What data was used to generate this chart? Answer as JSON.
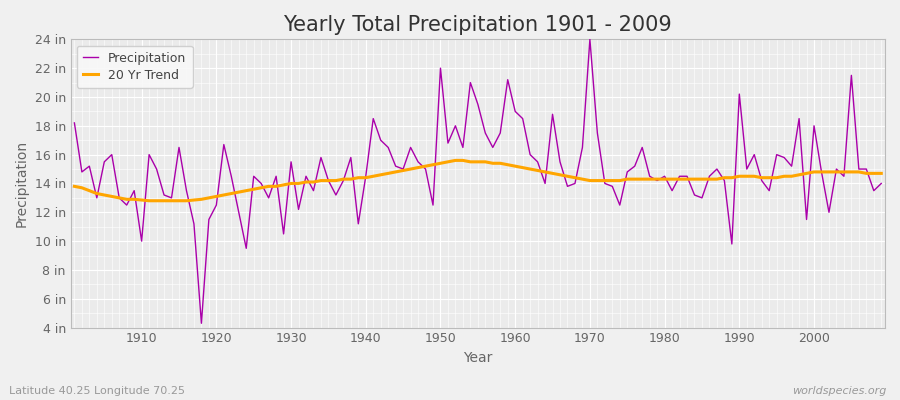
{
  "title": "Yearly Total Precipitation 1901 - 2009",
  "xlabel": "Year",
  "ylabel": "Precipitation",
  "lat_lon_text": "Latitude 40.25 Longitude 70.25",
  "watermark": "worldspecies.org",
  "ylim": [
    4,
    24
  ],
  "yticks": [
    4,
    6,
    8,
    10,
    12,
    14,
    16,
    18,
    20,
    22,
    24
  ],
  "ytick_labels": [
    "4 in",
    "6 in",
    "8 in",
    "10 in",
    "12 in",
    "14 in",
    "16 in",
    "18 in",
    "20 in",
    "22 in",
    "24 in"
  ],
  "years": [
    1901,
    1902,
    1903,
    1904,
    1905,
    1906,
    1907,
    1908,
    1909,
    1910,
    1911,
    1912,
    1913,
    1914,
    1915,
    1916,
    1917,
    1918,
    1919,
    1920,
    1921,
    1922,
    1923,
    1924,
    1925,
    1926,
    1927,
    1928,
    1929,
    1930,
    1931,
    1932,
    1933,
    1934,
    1935,
    1936,
    1937,
    1938,
    1939,
    1940,
    1941,
    1942,
    1943,
    1944,
    1945,
    1946,
    1947,
    1948,
    1949,
    1950,
    1951,
    1952,
    1953,
    1954,
    1955,
    1956,
    1957,
    1958,
    1959,
    1960,
    1961,
    1962,
    1963,
    1964,
    1965,
    1966,
    1967,
    1968,
    1969,
    1970,
    1971,
    1972,
    1973,
    1974,
    1975,
    1976,
    1977,
    1978,
    1979,
    1980,
    1981,
    1982,
    1983,
    1984,
    1985,
    1986,
    1987,
    1988,
    1989,
    1990,
    1991,
    1992,
    1993,
    1994,
    1995,
    1996,
    1997,
    1998,
    1999,
    2000,
    2001,
    2002,
    2003,
    2004,
    2005,
    2006,
    2007,
    2008,
    2009
  ],
  "precipitation": [
    18.2,
    14.8,
    15.2,
    13.0,
    15.5,
    16.0,
    13.0,
    12.5,
    13.5,
    10.0,
    16.0,
    15.0,
    13.2,
    13.0,
    16.5,
    13.5,
    11.2,
    4.3,
    11.5,
    12.5,
    16.7,
    14.5,
    12.0,
    9.5,
    14.5,
    14.0,
    13.0,
    14.5,
    10.5,
    15.5,
    12.2,
    14.5,
    13.5,
    15.8,
    14.2,
    13.2,
    14.2,
    15.8,
    11.2,
    14.5,
    18.5,
    17.0,
    16.5,
    15.2,
    15.0,
    16.5,
    15.5,
    15.0,
    12.5,
    22.0,
    16.8,
    18.0,
    16.5,
    21.0,
    19.5,
    17.5,
    16.5,
    17.5,
    21.2,
    19.0,
    18.5,
    16.0,
    15.5,
    14.0,
    18.8,
    15.5,
    13.8,
    14.0,
    16.5,
    24.0,
    17.5,
    14.0,
    13.8,
    12.5,
    14.8,
    15.2,
    16.5,
    14.5,
    14.2,
    14.5,
    13.5,
    14.5,
    14.5,
    13.2,
    13.0,
    14.5,
    15.0,
    14.2,
    9.8,
    20.2,
    15.0,
    16.0,
    14.2,
    13.5,
    16.0,
    15.8,
    15.2,
    18.5,
    11.5,
    18.0,
    14.8,
    12.0,
    15.0,
    14.5,
    21.5,
    15.0,
    15.0,
    13.5,
    14.0
  ],
  "trend": [
    13.8,
    13.7,
    13.5,
    13.3,
    13.2,
    13.1,
    13.0,
    12.9,
    12.9,
    12.85,
    12.8,
    12.8,
    12.8,
    12.8,
    12.8,
    12.8,
    12.85,
    12.9,
    13.0,
    13.1,
    13.2,
    13.3,
    13.4,
    13.5,
    13.6,
    13.7,
    13.8,
    13.8,
    13.9,
    14.0,
    14.0,
    14.1,
    14.1,
    14.2,
    14.2,
    14.2,
    14.3,
    14.3,
    14.4,
    14.4,
    14.5,
    14.6,
    14.7,
    14.8,
    14.9,
    15.0,
    15.1,
    15.2,
    15.3,
    15.4,
    15.5,
    15.6,
    15.6,
    15.5,
    15.5,
    15.5,
    15.4,
    15.4,
    15.3,
    15.2,
    15.1,
    15.0,
    14.9,
    14.8,
    14.7,
    14.6,
    14.5,
    14.4,
    14.3,
    14.2,
    14.2,
    14.2,
    14.2,
    14.2,
    14.3,
    14.3,
    14.3,
    14.3,
    14.3,
    14.3,
    14.3,
    14.3,
    14.3,
    14.3,
    14.3,
    14.3,
    14.3,
    14.4,
    14.4,
    14.5,
    14.5,
    14.5,
    14.4,
    14.4,
    14.4,
    14.5,
    14.5,
    14.6,
    14.7,
    14.8,
    14.8,
    14.8,
    14.8,
    14.8,
    14.8,
    14.8,
    14.7,
    14.7,
    14.7
  ],
  "precip_color": "#AA00AA",
  "trend_color": "#FFA500",
  "bg_color": "#F0F0F0",
  "plot_bg_color": "#EBEBEB",
  "grid_color": "#FFFFFF",
  "title_fontsize": 15,
  "axis_label_fontsize": 10,
  "tick_fontsize": 9,
  "legend_fontsize": 9,
  "watermark_fontsize": 8,
  "lat_lon_fontsize": 8,
  "xticks": [
    1910,
    1920,
    1930,
    1940,
    1950,
    1960,
    1970,
    1980,
    1990,
    2000
  ]
}
